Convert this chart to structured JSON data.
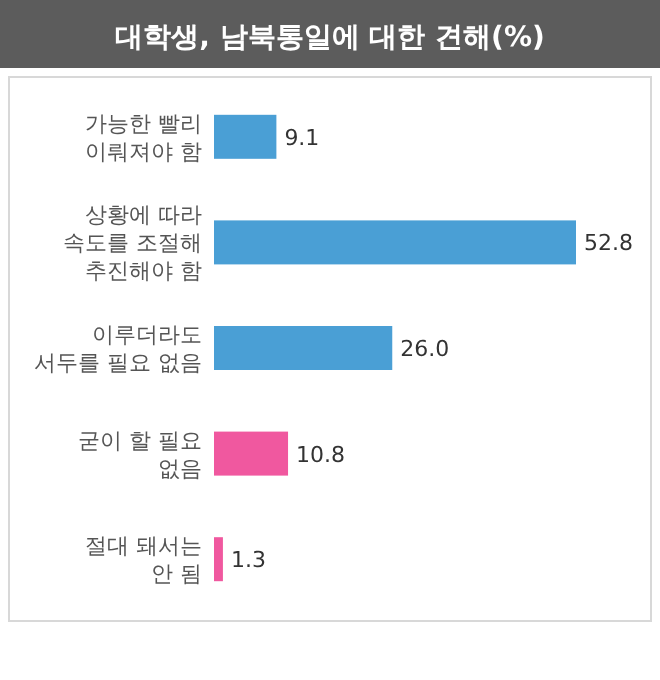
{
  "chart_data": {
    "type": "bar",
    "orientation": "horizontal",
    "title": "대학생, 남북통일에 대한 견해(%)",
    "categories": [
      "가능한 빨리\n이뤄져야 함",
      "상황에 따라\n속도를 조절해\n추진해야 함",
      "이루더라도\n서두를 필요 없음",
      "굳이 할 필요\n없음",
      "절대 돼서는\n안 됨"
    ],
    "values": [
      9.1,
      52.8,
      26.0,
      10.8,
      1.3
    ],
    "colors": [
      "#4a9fd5",
      "#4a9fd5",
      "#4a9fd5",
      "#f0589f",
      "#f0589f"
    ],
    "value_labels": [
      "9.1",
      "52.8",
      "26.0",
      "10.8",
      "1.3"
    ]
  }
}
